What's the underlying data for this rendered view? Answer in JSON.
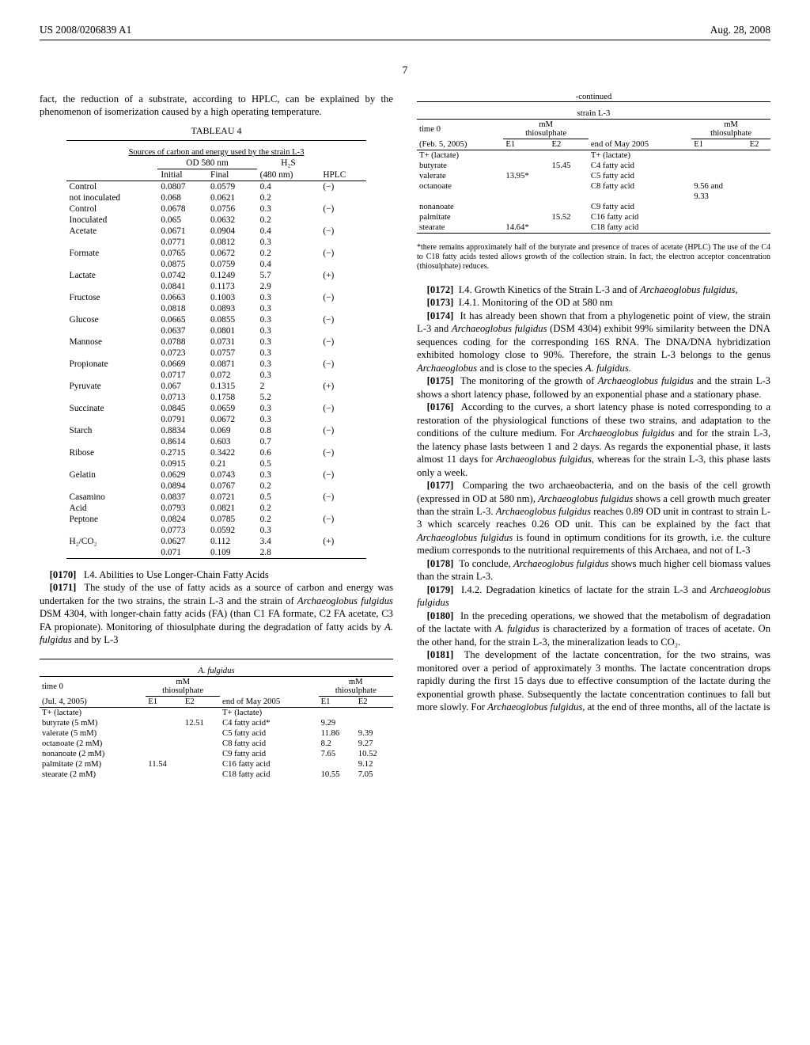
{
  "header": {
    "left": "US 2008/0206839 A1",
    "right": "Aug. 28, 2008"
  },
  "page_number": "7",
  "left_col": {
    "intro_text": "fact, the reduction of a substrate, according to HPLC, can be explained by the phenomenon of isomerization caused by a high operating temperature.",
    "table4": {
      "title": "TABLEAU 4",
      "subtitle": "Sources of carbon and energy used by the strain L-3",
      "col_group": "OD 580 nm",
      "col_h2s": "H₂S",
      "cols": [
        "",
        "Initial",
        "Final",
        "(480 nm)",
        "HPLC"
      ],
      "rows": [
        [
          "Control",
          "0.0807",
          "0.0579",
          "0.4",
          "(−)"
        ],
        [
          "not inoculated",
          "0.068",
          "0.0621",
          "0.2",
          ""
        ],
        [
          "Control",
          "0.0678",
          "0.0756",
          "0.3",
          "(−)"
        ],
        [
          "Inoculated",
          "0.065",
          "0.0632",
          "0.2",
          ""
        ],
        [
          "Acetate",
          "0.0671",
          "0.0904",
          "0.4",
          "(−)"
        ],
        [
          "",
          "0.0771",
          "0.0812",
          "0.3",
          ""
        ],
        [
          "Formate",
          "0.0765",
          "0.0672",
          "0.2",
          "(−)"
        ],
        [
          "",
          "0.0875",
          "0.0759",
          "0.4",
          ""
        ],
        [
          "Lactate",
          "0.0742",
          "0.1249",
          "5.7",
          "(+)"
        ],
        [
          "",
          "0.0841",
          "0.1173",
          "2.9",
          ""
        ],
        [
          "Fructose",
          "0.0663",
          "0.1003",
          "0.3",
          "(−)"
        ],
        [
          "",
          "0.0818",
          "0.0893",
          "0.3",
          ""
        ],
        [
          "Glucose",
          "0.0665",
          "0.0855",
          "0.3",
          "(−)"
        ],
        [
          "",
          "0.0637",
          "0.0801",
          "0.3",
          ""
        ],
        [
          "Mannose",
          "0.0788",
          "0.0731",
          "0.3",
          "(−)"
        ],
        [
          "",
          "0.0723",
          "0.0757",
          "0.3",
          ""
        ],
        [
          "Propionate",
          "0.0669",
          "0.0871",
          "0.3",
          "(−)"
        ],
        [
          "",
          "0.0717",
          "0.072",
          "0.3",
          ""
        ],
        [
          "Pyruvate",
          "0.067",
          "0.1315",
          "2",
          "(+)"
        ],
        [
          "",
          "0.0713",
          "0.1758",
          "5.2",
          ""
        ],
        [
          "Succinate",
          "0.0845",
          "0.0659",
          "0.3",
          "(−)"
        ],
        [
          "",
          "0.0791",
          "0.0672",
          "0.3",
          ""
        ],
        [
          "Starch",
          "0.8834",
          "0.069",
          "0.8",
          "(−)"
        ],
        [
          "",
          "0.8614",
          "0.603",
          "0.7",
          ""
        ],
        [
          "Ribose",
          "0.2715",
          "0.3422",
          "0.6",
          "(−)"
        ],
        [
          "",
          "0.0915",
          "0.21",
          "0.5",
          ""
        ],
        [
          "Gelatin",
          "0.0629",
          "0.0743",
          "0.3",
          "(−)"
        ],
        [
          "",
          "0.0894",
          "0.0767",
          "0.2",
          ""
        ],
        [
          "Casamino",
          "0.0837",
          "0.0721",
          "0.5",
          "(−)"
        ],
        [
          "Acid",
          "0.0793",
          "0.0821",
          "0.2",
          ""
        ],
        [
          "Peptone",
          "0.0824",
          "0.0785",
          "0.2",
          "(−)"
        ],
        [
          "",
          "0.0773",
          "0.0592",
          "0.3",
          ""
        ],
        [
          "H₂/CO₂",
          "0.0627",
          "0.112",
          "3.4",
          "(+)"
        ],
        [
          "",
          "0.071",
          "0.109",
          "2.8",
          ""
        ]
      ]
    },
    "p170_num": "[0170]",
    "p170": "I.4. Abilities to Use Longer-Chain Fatty Acids",
    "p171_num": "[0171]",
    "p171_a": "The study of the use of fatty acids as a source of carbon and energy was undertaken for the two strains, the strain L-3 and the strain of ",
    "p171_b": "Archaeoglobus fulgidus",
    "p171_c": " DSM 4304, with longer-chain fatty acids (FA) (than C1 FA formate, C2 FA acetate, C3 FA propionate). Monitoring of thiosulphate during the degradation of fatty acids by ",
    "p171_d": "A. fulgidus",
    "p171_e": " and by L-3",
    "fulgidus_table": {
      "header": "A. fulgidus",
      "time0": "time 0",
      "mm_thio": "mM\nthiosulphate",
      "date": "(Jul. 4, 2005)",
      "e1": "E1",
      "e2": "E2",
      "endmay": "end of May 2005",
      "rows": [
        [
          "T+ (lactate)",
          "",
          "",
          "T+ (lactate)",
          "",
          ""
        ],
        [
          "butyrate (5 mM)",
          "",
          "12.51",
          "C4 fatty acid*",
          "9.29",
          ""
        ],
        [
          "valerate (5 mM)",
          "",
          "",
          "C5 fatty acid",
          "11.86",
          "9.39"
        ],
        [
          "octanoate (2 mM)",
          "",
          "",
          "C8 fatty acid",
          "8.2",
          "9.27"
        ],
        [
          "nonanoate (2 mM)",
          "",
          "",
          "C9 fatty acid",
          "7.65",
          "10.52"
        ],
        [
          "palmitate (2 mM)",
          "11.54",
          "",
          "C16 fatty acid",
          "",
          "9.12"
        ],
        [
          "stearate (2 mM)",
          "",
          "",
          "C18 fatty acid",
          "10.55",
          "7.05"
        ]
      ]
    }
  },
  "right_col": {
    "continued": "-continued",
    "l3_header": "strain L-3",
    "time0": "time 0",
    "mm_thio1": "mM\nthiosulphate",
    "mm_thio2": "mM\nthiosulphate",
    "date": "(Feb. 5, 2005)",
    "e1": "E1",
    "e2": "E2",
    "endmay": "end of May 2005",
    "l3_rows": [
      [
        "T+ (lactate)",
        "",
        "",
        "T+ (lactate)",
        "",
        ""
      ],
      [
        "butyrate",
        "",
        "15.45",
        "C4 fatty acid",
        "",
        ""
      ],
      [
        "valerate",
        "13.95*",
        "",
        "C5 fatty acid",
        "",
        ""
      ],
      [
        "octanoate",
        "",
        "",
        "C8 fatty acid",
        "9.56 and",
        ""
      ],
      [
        "",
        "",
        "",
        "",
        "9.33",
        ""
      ],
      [
        "nonanoate",
        "",
        "",
        "C9 fatty acid",
        "",
        ""
      ],
      [
        "palmitate",
        "",
        "15.52",
        "C16 fatty acid",
        "",
        ""
      ],
      [
        "stearate",
        "14.64*",
        "",
        "C18 fatty acid",
        "",
        ""
      ]
    ],
    "footnote": "*there remains approximately half of the butyrate and presence of traces of acetate (HPLC) The use of the C4 to C18 fatty acids tested allows growth of the collection strain. In fact, the electron acceptor concentration (thiosulphate) reduces.",
    "p172_num": "[0172]",
    "p172_a": "I.4. Growth Kinetics of the Strain L-3 and of ",
    "p172_b": "Archaeoglobus fulgidus,",
    "p173_num": "[0173]",
    "p173": "I.4.1. Monitoring of the OD at 580 nm",
    "p174_num": "[0174]",
    "p174_a": "It has already been shown that from a phylogenetic point of view, the strain L-3 and ",
    "p174_b": "Archaeoglobus fulgidus",
    "p174_c": " (DSM 4304) exhibit 99% similarity between the DNA sequences coding for the corresponding 16S RNA. The DNA/DNA hybridization exhibited homology close to 90%. Therefore, the strain L-3 belongs to the genus ",
    "p174_d": "Archaeoglobus",
    "p174_e": " and is close to the species ",
    "p174_f": "A. fulgidus.",
    "p175_num": "[0175]",
    "p175_a": "The monitoring of the growth of ",
    "p175_b": "Archaeoglobus fulgidus",
    "p175_c": " and the strain L-3 shows a short latency phase, followed by an exponential phase and a stationary phase.",
    "p176_num": "[0176]",
    "p176_a": "According to the curves, a short latency phase is noted corresponding to a restoration of the physiological functions of these two strains, and adaptation to the conditions of the culture medium. For ",
    "p176_b": "Archaeoglobus fulgidus",
    "p176_c": " and for the strain L-3, the latency phase lasts between 1 and 2 days. As regards the exponential phase, it lasts almost 11 days for ",
    "p176_d": "Archaeoglobus fulgidus,",
    "p176_e": " whereas for the strain L-3, this phase lasts only a week.",
    "p177_num": "[0177]",
    "p177_a": "Comparing the two archaeobacteria, and on the basis of the cell growth (expressed in OD at 580 nm), ",
    "p177_b": "Archaeoglobus fulgidus",
    "p177_c": " shows a cell growth much greater than the strain L-3. ",
    "p177_d": "Archaeoglobus fulgidus",
    "p177_e": " reaches 0.89 OD unit in contrast to strain L-3 which scarcely reaches 0.26 OD unit. This can be explained by the fact that ",
    "p177_f": "Archaeoglobus fulgidus",
    "p177_g": " is found in optimum conditions for its growth, i.e. the culture medium corresponds to the nutritional requirements of this Archaea, and not of L-3",
    "p178_num": "[0178]",
    "p178_a": "To conclude, ",
    "p178_b": "Archaeoglobus fulgidus",
    "p178_c": " shows much higher cell biomass values than the strain L-3.",
    "p179_num": "[0179]",
    "p179_a": "I.4.2. Degradation kinetics of lactate for the strain L-3 and ",
    "p179_b": "Archaeoglobus fulgidus",
    "p180_num": "[0180]",
    "p180_a": "In the preceding operations, we showed that the metabolism of degradation of the lactate with ",
    "p180_b": "A. fulgidus",
    "p180_c": " is characterized by a formation of traces of acetate. On the other hand, for the strain L-3, the mineralization leads to CO₂.",
    "p181_num": "[0181]",
    "p181_a": "The development of the lactate concentration, for the two strains, was monitored over a period of approximately 3 months. The lactate concentration drops rapidly during the first 15 days due to effective consumption of the lactate during the exponential growth phase. Subsequently the lactate concentration continues to fall but more slowly. For ",
    "p181_b": "Archaeoglobus fulgidus,",
    "p181_c": " at the end of three months, all of the lactate is"
  }
}
